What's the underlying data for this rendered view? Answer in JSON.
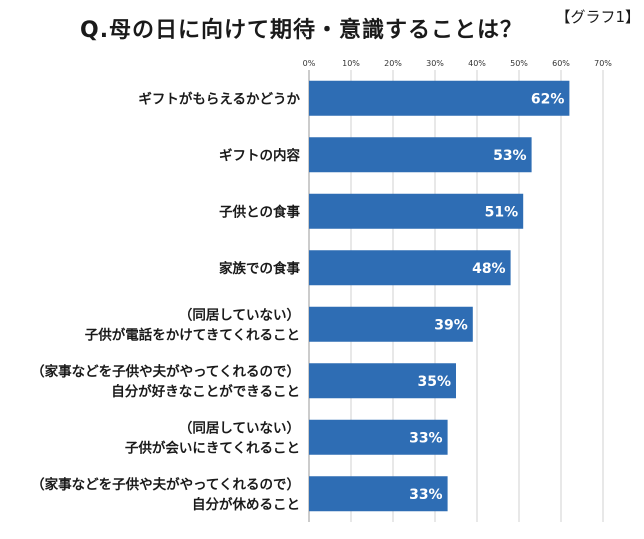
{
  "header": {
    "title": "Q.母の日に向けて期待・意識することは？",
    "graph_tag": "【グラフ1】"
  },
  "chart_data": {
    "type": "bar",
    "orientation": "horizontal",
    "title": "Q.母の日に向けて期待・意識することは？",
    "xlabel": "",
    "ylabel": "",
    "xlim": [
      0,
      70
    ],
    "x_ticks": [
      "0%",
      "10%",
      "20%",
      "30%",
      "40%",
      "50%",
      "60%",
      "70%"
    ],
    "x_tick_values": [
      0,
      10,
      20,
      30,
      40,
      50,
      60,
      70
    ],
    "grid": true,
    "bar_color": "#2e6db4",
    "categories": [
      [
        "ギフトがもらえるかどうか"
      ],
      [
        "ギフトの内容"
      ],
      [
        "子供との食事"
      ],
      [
        "家族での食事"
      ],
      [
        "（同居していない）",
        "子供が電話をかけてきてくれること"
      ],
      [
        "（家事などを子供や夫がやってくれるので）",
        "自分が好きなことができること"
      ],
      [
        "（同居していない）",
        "子供が会いにきてくれること"
      ],
      [
        "（家事などを子供や夫がやってくれるので）",
        "自分が休めること"
      ]
    ],
    "values": [
      62,
      53,
      51,
      48,
      39,
      35,
      33,
      33
    ],
    "value_labels": [
      "62%",
      "53%",
      "51%",
      "48%",
      "39%",
      "35%",
      "33%",
      "33%"
    ]
  }
}
